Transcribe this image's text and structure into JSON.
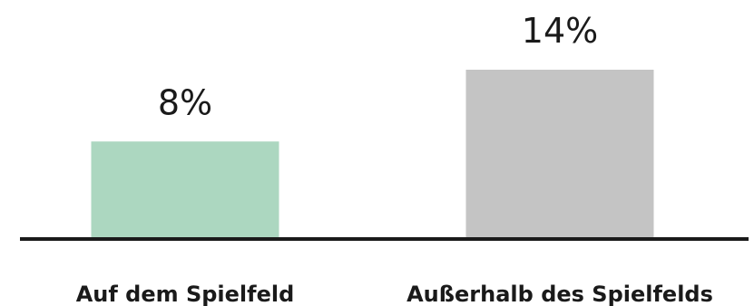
{
  "chart_data": {
    "type": "bar",
    "categories": [
      "Auf dem Spielfeld",
      "Außerhalb des Spielfelds"
    ],
    "values": [
      8,
      14
    ],
    "value_labels": [
      "8%",
      "14%"
    ],
    "unit": "%",
    "colors": [
      "#acd7c0",
      "#c4c4c4"
    ],
    "axis_color": "#1a1a1a",
    "title": "",
    "xlabel": "",
    "ylabel": "",
    "ylim": [
      0,
      14
    ],
    "grid": false,
    "legend": "none"
  }
}
